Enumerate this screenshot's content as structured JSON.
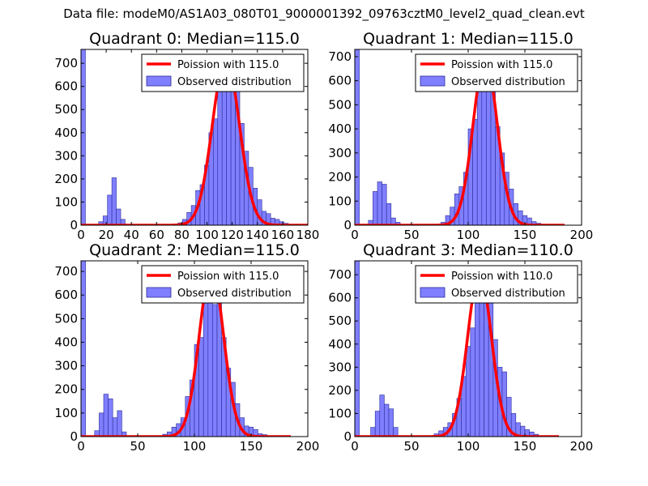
{
  "figure": {
    "suptitle": "Data file: modeM0/AS1A03_080T01_9000001392_09763cztM0_level2_quad_clean.evt"
  },
  "colors": {
    "observed_fill": "#7f7fff",
    "observed_edge": "#2b2b99",
    "poisson_line": "#ff0000",
    "axis": "#000000"
  },
  "chart_data": [
    {
      "type": "bar",
      "title": "Quadrant 0: Median=115.0",
      "xlim": [
        0,
        180
      ],
      "ylim": [
        0,
        760
      ],
      "xticks": [
        "0",
        "20",
        "40",
        "60",
        "80",
        "100",
        "120",
        "140",
        "160",
        "180"
      ],
      "xtick_values": [
        0,
        20,
        40,
        60,
        80,
        100,
        120,
        140,
        160,
        180
      ],
      "yticks": [
        "0",
        "100",
        "200",
        "300",
        "400",
        "500",
        "600",
        "700"
      ],
      "ytick_values": [
        0,
        100,
        200,
        300,
        400,
        500,
        600,
        700
      ],
      "bin_width": 3.5,
      "bins": [
        {
          "x": 0,
          "y": 760
        },
        {
          "x": 14,
          "y": 15
        },
        {
          "x": 17.5,
          "y": 40
        },
        {
          "x": 21,
          "y": 130
        },
        {
          "x": 24.5,
          "y": 205
        },
        {
          "x": 28,
          "y": 70
        },
        {
          "x": 31.5,
          "y": 25
        },
        {
          "x": 77,
          "y": 10
        },
        {
          "x": 80.5,
          "y": 25
        },
        {
          "x": 84,
          "y": 55
        },
        {
          "x": 87.5,
          "y": 85
        },
        {
          "x": 91,
          "y": 150
        },
        {
          "x": 94.5,
          "y": 175
        },
        {
          "x": 98,
          "y": 260
        },
        {
          "x": 101.5,
          "y": 400
        },
        {
          "x": 105,
          "y": 460
        },
        {
          "x": 108.5,
          "y": 660
        },
        {
          "x": 112,
          "y": 690
        },
        {
          "x": 115.5,
          "y": 720
        },
        {
          "x": 119,
          "y": 640
        },
        {
          "x": 122.5,
          "y": 610
        },
        {
          "x": 126,
          "y": 440
        },
        {
          "x": 129.5,
          "y": 320
        },
        {
          "x": 133,
          "y": 250
        },
        {
          "x": 136.5,
          "y": 160
        },
        {
          "x": 140,
          "y": 110
        },
        {
          "x": 143.5,
          "y": 60
        },
        {
          "x": 147,
          "y": 50
        },
        {
          "x": 150.5,
          "y": 30
        },
        {
          "x": 154,
          "y": 25
        },
        {
          "x": 157.5,
          "y": 15
        },
        {
          "x": 161,
          "y": 8
        }
      ],
      "series": [
        {
          "name": "Poission with 115.0",
          "kind": "line",
          "mean": 115.0,
          "peak": 720,
          "sigma": 10.7
        },
        {
          "name": "Observed distribution",
          "kind": "bar"
        }
      ],
      "legend_position": "top-right"
    },
    {
      "type": "bar",
      "title": "Quadrant 1: Median=115.0",
      "xlim": [
        0,
        200
      ],
      "ylim": [
        0,
        730
      ],
      "xticks": [
        "0",
        "50",
        "100",
        "150",
        "200"
      ],
      "xtick_values": [
        0,
        50,
        100,
        150,
        200
      ],
      "yticks": [
        "0",
        "100",
        "200",
        "300",
        "400",
        "500",
        "600",
        "700"
      ],
      "ytick_values": [
        0,
        100,
        200,
        300,
        400,
        500,
        600,
        700
      ],
      "bin_width": 4,
      "bins": [
        {
          "x": 0,
          "y": 730
        },
        {
          "x": 12,
          "y": 20
        },
        {
          "x": 16,
          "y": 140
        },
        {
          "x": 20,
          "y": 180
        },
        {
          "x": 24,
          "y": 170
        },
        {
          "x": 28,
          "y": 90
        },
        {
          "x": 32,
          "y": 30
        },
        {
          "x": 36,
          "y": 12
        },
        {
          "x": 76,
          "y": 12
        },
        {
          "x": 80,
          "y": 40
        },
        {
          "x": 84,
          "y": 75
        },
        {
          "x": 88,
          "y": 130
        },
        {
          "x": 92,
          "y": 160
        },
        {
          "x": 96,
          "y": 220
        },
        {
          "x": 100,
          "y": 400
        },
        {
          "x": 104,
          "y": 440
        },
        {
          "x": 108,
          "y": 610
        },
        {
          "x": 112,
          "y": 690
        },
        {
          "x": 116,
          "y": 630
        },
        {
          "x": 120,
          "y": 580
        },
        {
          "x": 124,
          "y": 410
        },
        {
          "x": 128,
          "y": 300
        },
        {
          "x": 132,
          "y": 220
        },
        {
          "x": 136,
          "y": 150
        },
        {
          "x": 140,
          "y": 90
        },
        {
          "x": 144,
          "y": 60
        },
        {
          "x": 148,
          "y": 40
        },
        {
          "x": 152,
          "y": 30
        },
        {
          "x": 156,
          "y": 15
        },
        {
          "x": 160,
          "y": 8
        }
      ],
      "series": [
        {
          "name": "Poission with 115.0",
          "kind": "line",
          "mean": 115.0,
          "peak": 690,
          "sigma": 10.7
        },
        {
          "name": "Observed distribution",
          "kind": "bar"
        }
      ],
      "legend_position": "top-right"
    },
    {
      "type": "bar",
      "title": "Quadrant 2: Median=115.0",
      "xlim": [
        0,
        200
      ],
      "ylim": [
        0,
        745
      ],
      "xticks": [
        "0",
        "50",
        "100",
        "150",
        "200"
      ],
      "xtick_values": [
        0,
        50,
        100,
        150,
        200
      ],
      "yticks": [
        "0",
        "100",
        "200",
        "300",
        "400",
        "500",
        "600",
        "700"
      ],
      "ytick_values": [
        0,
        100,
        200,
        300,
        400,
        500,
        600,
        700
      ],
      "bin_width": 4,
      "bins": [
        {
          "x": 0,
          "y": 745
        },
        {
          "x": 12,
          "y": 25
        },
        {
          "x": 16,
          "y": 100
        },
        {
          "x": 20,
          "y": 180
        },
        {
          "x": 24,
          "y": 160
        },
        {
          "x": 28,
          "y": 80
        },
        {
          "x": 32,
          "y": 110
        },
        {
          "x": 36,
          "y": 20
        },
        {
          "x": 72,
          "y": 10
        },
        {
          "x": 76,
          "y": 20
        },
        {
          "x": 80,
          "y": 40
        },
        {
          "x": 84,
          "y": 55
        },
        {
          "x": 88,
          "y": 80
        },
        {
          "x": 92,
          "y": 170
        },
        {
          "x": 96,
          "y": 240
        },
        {
          "x": 100,
          "y": 390
        },
        {
          "x": 104,
          "y": 420
        },
        {
          "x": 108,
          "y": 610
        },
        {
          "x": 112,
          "y": 650
        },
        {
          "x": 116,
          "y": 560
        },
        {
          "x": 120,
          "y": 670
        },
        {
          "x": 124,
          "y": 420
        },
        {
          "x": 128,
          "y": 290
        },
        {
          "x": 132,
          "y": 230
        },
        {
          "x": 136,
          "y": 140
        },
        {
          "x": 140,
          "y": 80
        },
        {
          "x": 144,
          "y": 45
        },
        {
          "x": 148,
          "y": 40
        },
        {
          "x": 152,
          "y": 30
        },
        {
          "x": 156,
          "y": 12
        },
        {
          "x": 160,
          "y": 8
        }
      ],
      "series": [
        {
          "name": "Poission with 115.0",
          "kind": "line",
          "mean": 115.0,
          "peak": 710,
          "sigma": 10.7
        },
        {
          "name": "Observed distribution",
          "kind": "bar"
        }
      ],
      "legend_position": "top-right"
    },
    {
      "type": "bar",
      "title": "Quadrant 3: Median=110.0",
      "xlim": [
        0,
        200
      ],
      "ylim": [
        0,
        760
      ],
      "xticks": [
        "0",
        "50",
        "100",
        "150",
        "200"
      ],
      "xtick_values": [
        0,
        50,
        100,
        150,
        200
      ],
      "yticks": [
        "0",
        "100",
        "200",
        "300",
        "400",
        "500",
        "600",
        "700"
      ],
      "ytick_values": [
        0,
        100,
        200,
        300,
        400,
        500,
        600,
        700
      ],
      "bin_width": 4,
      "bins": [
        {
          "x": 0,
          "y": 760
        },
        {
          "x": 14,
          "y": 40
        },
        {
          "x": 18,
          "y": 110
        },
        {
          "x": 22,
          "y": 180
        },
        {
          "x": 26,
          "y": 140
        },
        {
          "x": 30,
          "y": 120
        },
        {
          "x": 34,
          "y": 40
        },
        {
          "x": 70,
          "y": 12
        },
        {
          "x": 74,
          "y": 25
        },
        {
          "x": 78,
          "y": 40
        },
        {
          "x": 82,
          "y": 60
        },
        {
          "x": 86,
          "y": 100
        },
        {
          "x": 90,
          "y": 165
        },
        {
          "x": 94,
          "y": 260
        },
        {
          "x": 98,
          "y": 390
        },
        {
          "x": 102,
          "y": 470
        },
        {
          "x": 106,
          "y": 600
        },
        {
          "x": 110,
          "y": 700
        },
        {
          "x": 114,
          "y": 590
        },
        {
          "x": 118,
          "y": 590
        },
        {
          "x": 122,
          "y": 420
        },
        {
          "x": 126,
          "y": 300
        },
        {
          "x": 130,
          "y": 280
        },
        {
          "x": 134,
          "y": 170
        },
        {
          "x": 138,
          "y": 100
        },
        {
          "x": 142,
          "y": 60
        },
        {
          "x": 146,
          "y": 45
        },
        {
          "x": 150,
          "y": 30
        },
        {
          "x": 154,
          "y": 20
        },
        {
          "x": 158,
          "y": 10
        }
      ],
      "series": [
        {
          "name": "Poission with 110.0",
          "kind": "line",
          "mean": 110.0,
          "peak": 710,
          "sigma": 10.5
        },
        {
          "name": "Observed distribution",
          "kind": "bar"
        }
      ],
      "legend_position": "top-right"
    }
  ]
}
